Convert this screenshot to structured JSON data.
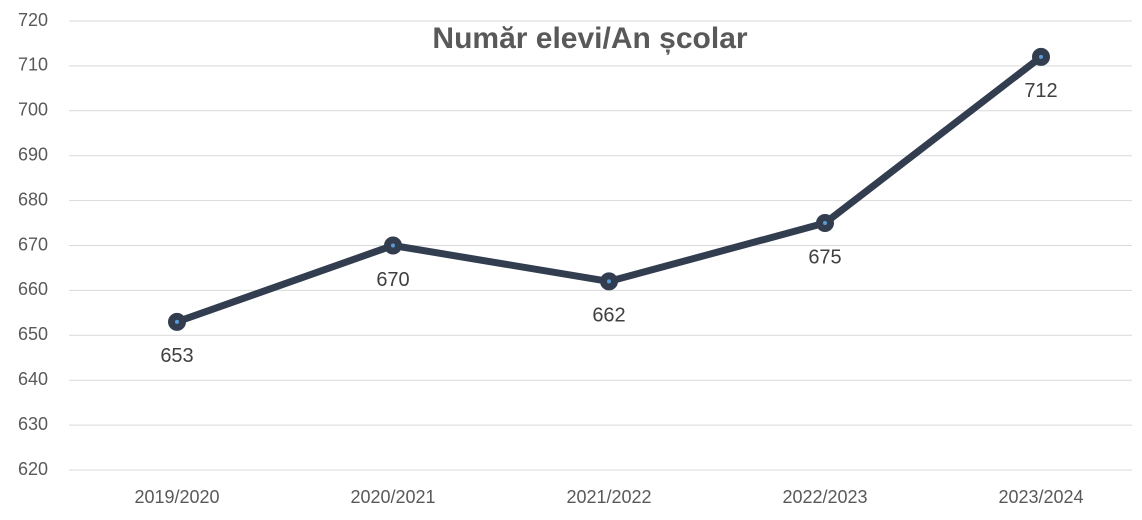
{
  "chart_data": {
    "type": "line",
    "title": "Număr elevi/An școlar",
    "categories": [
      "2019/2020",
      "2020/2021",
      "2021/2022",
      "2022/2023",
      "2023/2024"
    ],
    "values": [
      653,
      670,
      662,
      675,
      712
    ],
    "color": "#323e4f",
    "ylim": [
      620,
      720
    ],
    "yticks": [
      620,
      630,
      640,
      650,
      660,
      670,
      680,
      690,
      700,
      710,
      720
    ],
    "grid": true
  }
}
